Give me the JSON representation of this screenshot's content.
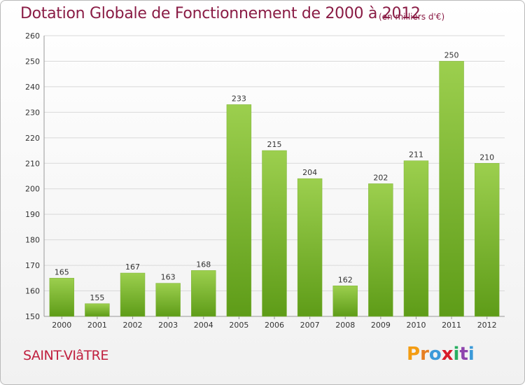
{
  "title": "Dotation Globale de Fonctionnement de 2000 à 2012",
  "unit_note": "(en milliers d'€)",
  "commune": "SAINT-VIâTRE",
  "logo": {
    "letters": [
      "P",
      "r",
      "o",
      "x",
      "i",
      "t",
      "i"
    ],
    "colors": [
      "#f39c12",
      "#e67e22",
      "#3b9ad9",
      "#d81b2b",
      "#27ae60",
      "#8e44ad",
      "#3b9ad9"
    ]
  },
  "colors": {
    "bar_top": "#9ccf4e",
    "bar_bottom": "#5e9c18",
    "grid": "#d9d9d9",
    "title": "#8a1c45"
  },
  "chart_data": {
    "type": "bar",
    "categories": [
      "2000",
      "2001",
      "2002",
      "2003",
      "2004",
      "2005",
      "2006",
      "2007",
      "2008",
      "2009",
      "2010",
      "2011",
      "2012"
    ],
    "values": [
      165,
      155,
      167,
      163,
      168,
      233,
      215,
      204,
      162,
      202,
      211,
      250,
      210
    ],
    "title": "Dotation Globale de Fonctionnement de 2000 à 2012",
    "ylim": [
      150,
      260
    ],
    "yticks": [
      150,
      160,
      170,
      180,
      190,
      200,
      210,
      220,
      230,
      240,
      250,
      260
    ],
    "grid": true
  }
}
